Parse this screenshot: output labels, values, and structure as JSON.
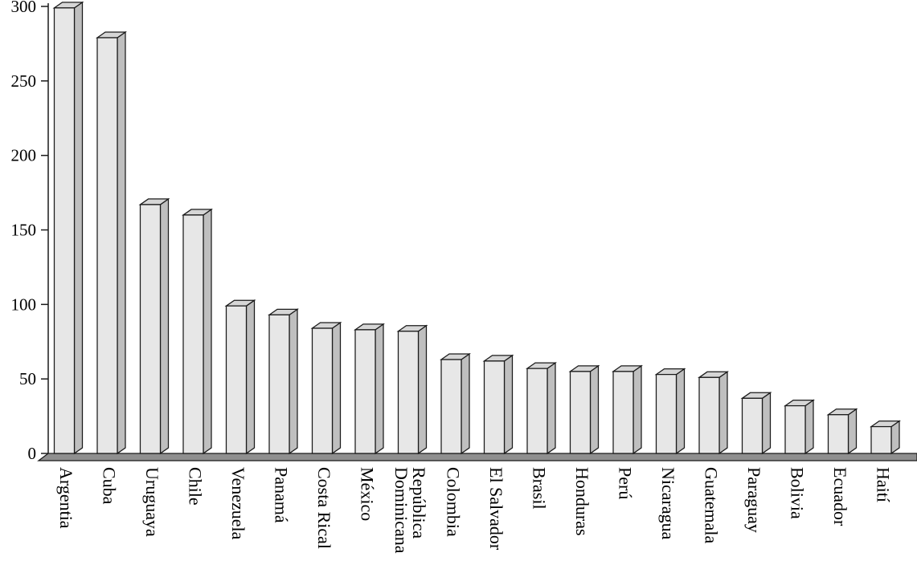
{
  "chart_data": {
    "type": "bar",
    "style": "3d-column",
    "categories": [
      "Argentia",
      "Cuba",
      "Uruguaya",
      "Chile",
      "Venezuela",
      "Panamá",
      "Costa Rical",
      "México",
      "República\nDominicana",
      "Colombia",
      "El Salvador",
      "Brasil",
      "Honduras",
      "Perú",
      "Nicaragua",
      "Guatemala",
      "Paraguay",
      "Bolivia",
      "Ecuador",
      "Haití"
    ],
    "values": [
      299,
      279,
      167,
      160,
      99,
      93,
      84,
      83,
      82,
      63,
      62,
      57,
      55,
      55,
      53,
      51,
      37,
      32,
      26,
      18
    ],
    "title": "",
    "xlabel": "",
    "ylabel": "",
    "ylim": [
      0,
      300
    ],
    "yticks": [
      0,
      50,
      100,
      150,
      200,
      250,
      300
    ],
    "grid": false,
    "legend": false,
    "colors": {
      "bar_front": "#e7e7e7",
      "bar_top": "#d6d6d6",
      "bar_side": "#bfbfbf",
      "outline": "#1a1a1a",
      "platform": "#8f8f8f",
      "background": "#ffffff"
    }
  }
}
